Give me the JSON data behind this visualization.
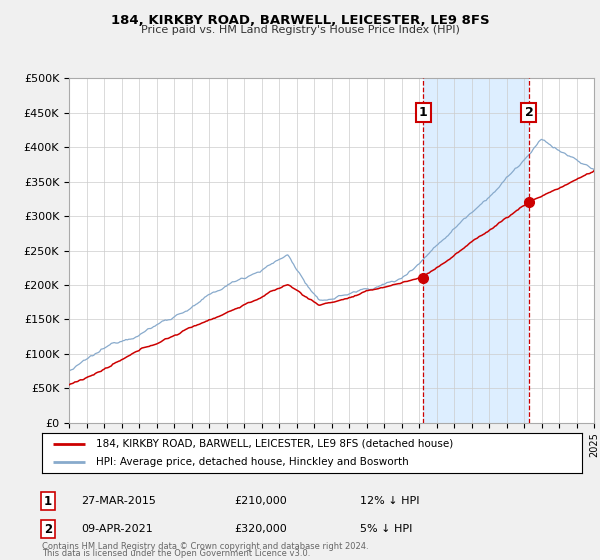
{
  "title": "184, KIRKBY ROAD, BARWELL, LEICESTER, LE9 8FS",
  "subtitle": "Price paid vs. HM Land Registry's House Price Index (HPI)",
  "background_color": "#f0f0f0",
  "plot_bg_color": "#ffffff",
  "grid_color": "#cccccc",
  "red_line_color": "#cc0000",
  "blue_line_color": "#88aacc",
  "shade_color": "#ddeeff",
  "ylim": [
    0,
    500000
  ],
  "yticks": [
    0,
    50000,
    100000,
    150000,
    200000,
    250000,
    300000,
    350000,
    400000,
    450000,
    500000
  ],
  "ytick_labels": [
    "£0",
    "£50K",
    "£100K",
    "£150K",
    "£200K",
    "£250K",
    "£300K",
    "£350K",
    "£400K",
    "£450K",
    "£500K"
  ],
  "xmin": 1995,
  "xmax": 2025,
  "marker1_x": 2015.23,
  "marker1_y": 210000,
  "marker1_label": "1",
  "marker1_date": "27-MAR-2015",
  "marker1_price": "£210,000",
  "marker1_hpi": "12% ↓ HPI",
  "marker2_x": 2021.28,
  "marker2_y": 320000,
  "marker2_label": "2",
  "marker2_date": "09-APR-2021",
  "marker2_price": "£320,000",
  "marker2_hpi": "5% ↓ HPI",
  "legend_line1": "184, KIRKBY ROAD, BARWELL, LEICESTER, LE9 8FS (detached house)",
  "legend_line2": "HPI: Average price, detached house, Hinckley and Bosworth",
  "footnote1": "Contains HM Land Registry data © Crown copyright and database right 2024.",
  "footnote2": "This data is licensed under the Open Government Licence v3.0."
}
